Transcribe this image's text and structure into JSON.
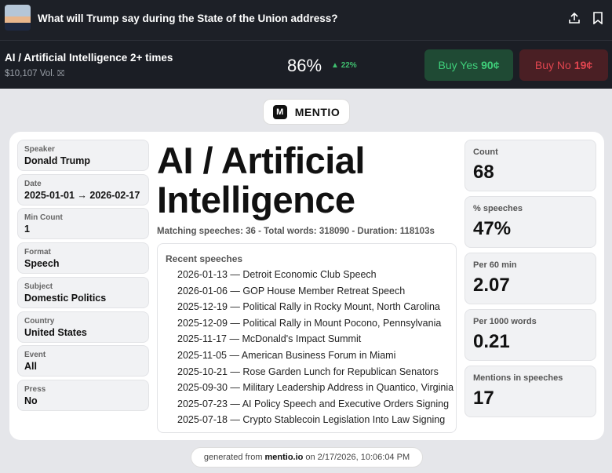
{
  "header": {
    "title": "What will Trump say during the State of the Union address?"
  },
  "market": {
    "name": "AI / Artificial Intelligence 2+ times",
    "volume": "$10,107 Vol.",
    "probability": "86%",
    "change": "22%",
    "buy_yes": {
      "label": "Buy Yes",
      "price": "90¢"
    },
    "buy_no": {
      "label": "Buy No",
      "price": "19¢"
    }
  },
  "brand": "MENTIO",
  "filters": [
    {
      "label": "Speaker",
      "value": "Donald Trump"
    },
    {
      "label": "Date",
      "value": "2025-01-01 → 2026-02-17"
    },
    {
      "label": "Min Count",
      "value": "1"
    },
    {
      "label": "Format",
      "value": "Speech"
    },
    {
      "label": "Subject",
      "value": "Domestic Politics"
    },
    {
      "label": "Country",
      "value": "United States"
    },
    {
      "label": "Event",
      "value": "All"
    },
    {
      "label": "Press",
      "value": "No"
    }
  ],
  "term": {
    "title": "AI / Artificial Intelligence",
    "summary": "Matching speeches: 36 - Total words: 318090 - Duration: 118103s"
  },
  "recent": {
    "title": "Recent speeches",
    "items": [
      "2026-01-13 — Detroit Economic Club Speech",
      "2026-01-06 — GOP House Member Retreat Speech",
      "2025-12-19 — Political Rally in Rocky Mount, North Carolina",
      "2025-12-09 — Political Rally in Mount Pocono, Pennsylvania",
      "2025-11-17 — McDonald's Impact Summit",
      "2025-11-05 — American Business Forum in Miami",
      "2025-10-21 — Rose Garden Lunch for Republican Senators",
      "2025-09-30 — Military Leadership Address in Quantico, Virginia",
      "2025-07-23 — AI Policy Speech and Executive Orders Signing",
      "2025-07-18 — Crypto Stablecoin Legislation Into Law Signing"
    ]
  },
  "stats": [
    {
      "label": "Count",
      "value": "68"
    },
    {
      "label": "% speeches",
      "value": "47%"
    },
    {
      "label": "Per 60 min",
      "value": "2.07"
    },
    {
      "label": "Per 1000 words",
      "value": "0.21"
    },
    {
      "label": "Mentions in speeches",
      "value": "17"
    }
  ],
  "footer": {
    "prefix": "generated from",
    "site": "mentio.io",
    "suffix": "on 2/17/2026, 10:06:04 PM"
  }
}
